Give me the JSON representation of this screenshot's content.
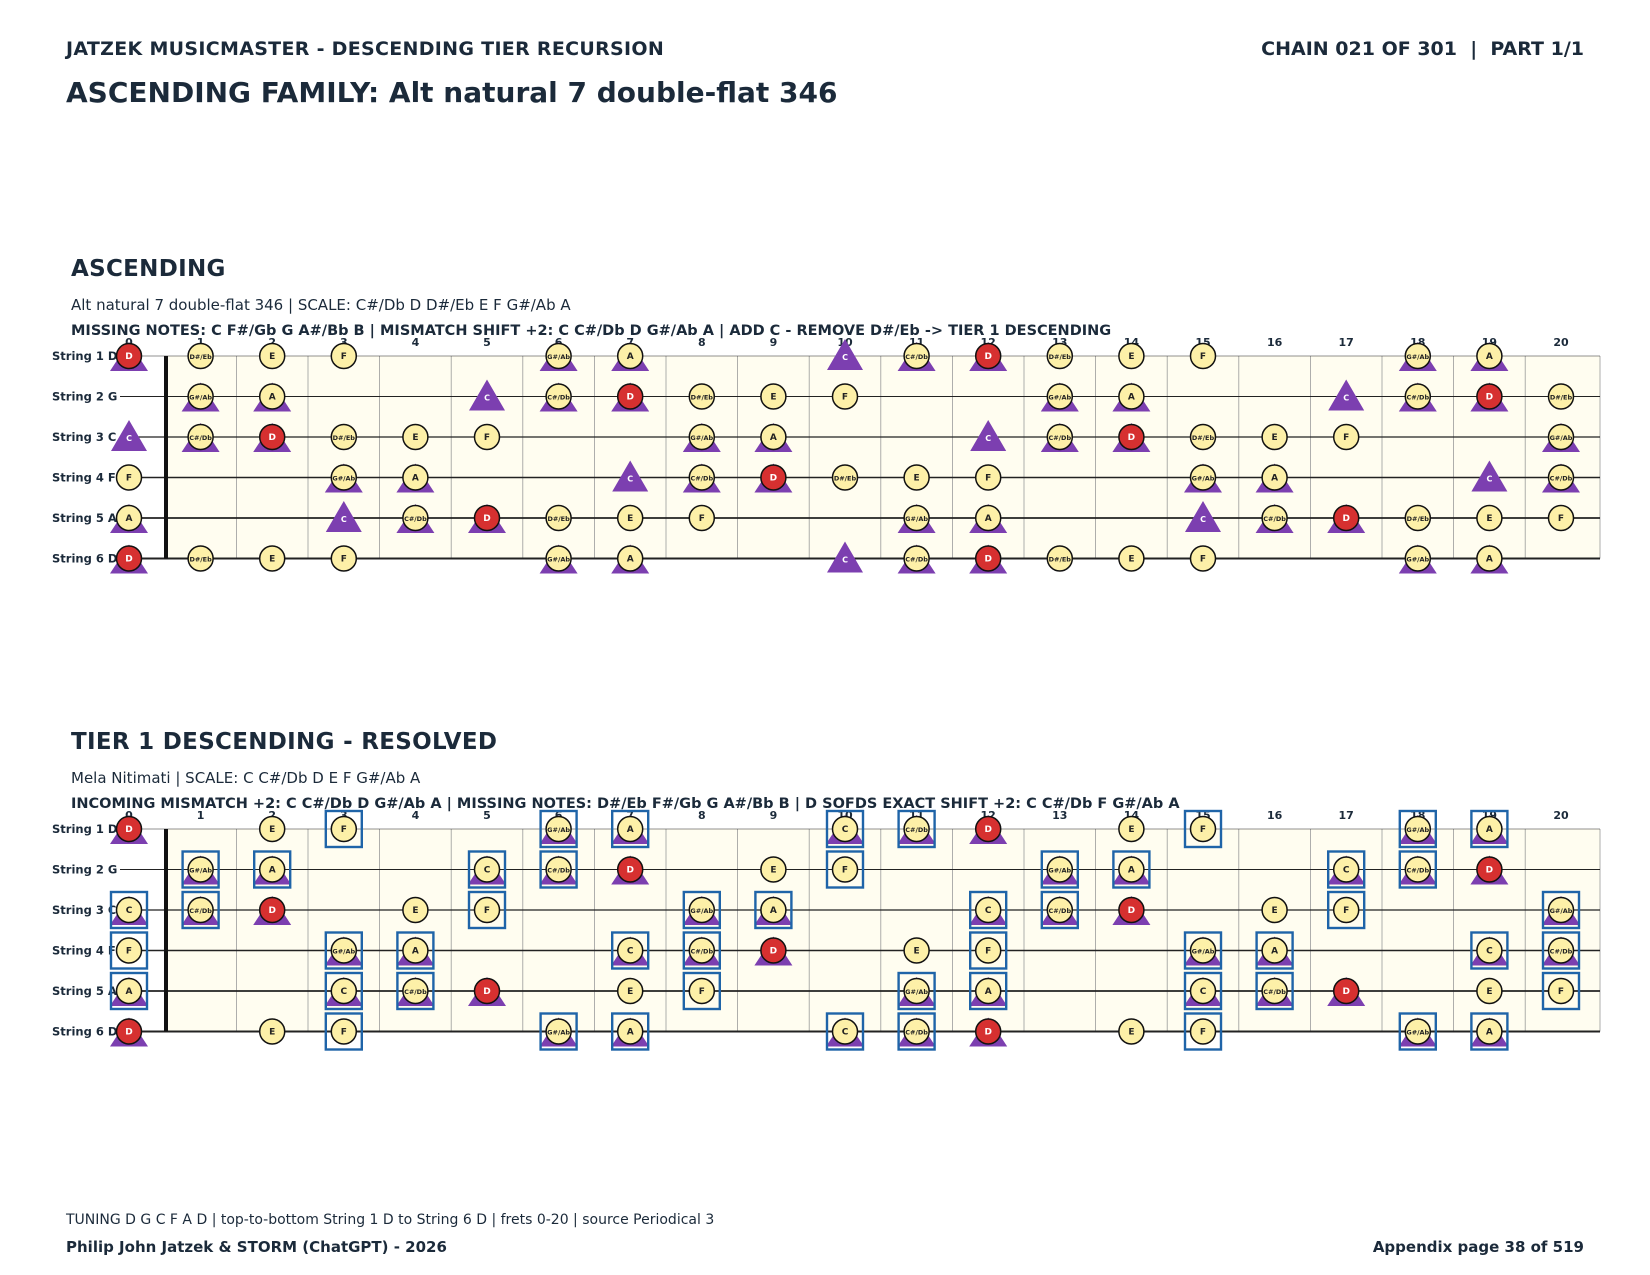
{
  "header": {
    "left": "JATZEK MUSICMASTER - DESCENDING TIER RECURSION",
    "right": "CHAIN 021 OF 301  |  PART 1/1",
    "title": "ASCENDING FAMILY: Alt natural 7 double-flat 346"
  },
  "fretboard": {
    "strings": [
      "String 1 D",
      "String 2 G",
      "String 3 C",
      "String 4 F",
      "String 5 A",
      "String 6 D"
    ],
    "open_notes": [
      "D",
      "G",
      "C",
      "F",
      "A",
      "D"
    ],
    "fret_numbers": [
      "0",
      "1",
      "2",
      "3",
      "4",
      "5",
      "6",
      "7",
      "8",
      "9",
      "10",
      "11",
      "12",
      "13",
      "14",
      "15",
      "16",
      "17",
      "18",
      "19",
      "20"
    ],
    "chromatic": [
      "C",
      "C#/Db",
      "D",
      "D#/Eb",
      "E",
      "F",
      "F#/Gb",
      "G",
      "G#/Ab",
      "A",
      "A#/Bb",
      "B"
    ],
    "colors": {
      "bg": "#fffdf0",
      "note": "#fdf0a8",
      "root": "#d63030",
      "triangle": "#7c3fb0",
      "box": "#1f64a8"
    }
  },
  "sections": [
    {
      "title": "ASCENDING",
      "subtitle": "Alt natural 7 double-flat 346  |  SCALE: C#/Db D D#/Eb E F G#/Ab A",
      "detail": "MISSING NOTES: C F#/Gb G A#/Bb B  |  MISMATCH SHIFT +2: C C#/Db D G#/Ab A  |  ADD C - REMOVE D#/Eb -> TIER 1 DESCENDING",
      "scale_notes": [
        "C#/Db",
        "D",
        "D#/Eb",
        "E",
        "F",
        "G#/Ab",
        "A"
      ],
      "triangle_notes": [
        "C",
        "C#/Db",
        "D",
        "G#/Ab",
        "A"
      ],
      "big_triangle_notes": [
        "C"
      ],
      "boxed_notes": [],
      "root": "D"
    },
    {
      "title": "TIER 1 DESCENDING - RESOLVED",
      "subtitle": "Mela Nitimati  |  SCALE: C C#/Db D E F G#/Ab A",
      "detail": "INCOMING MISMATCH +2: C C#/Db D G#/Ab A  |  MISSING NOTES: D#/Eb F#/Gb G A#/Bb B  |  D SOFDS EXACT SHIFT +2: C C#/Db F G#/Ab A",
      "scale_notes": [
        "C",
        "C#/Db",
        "D",
        "E",
        "F",
        "G#/Ab",
        "A"
      ],
      "triangle_notes": [
        "C",
        "C#/Db",
        "D",
        "G#/Ab",
        "A"
      ],
      "big_triangle_notes": [],
      "boxed_notes": [
        "C",
        "C#/Db",
        "F",
        "G#/Ab",
        "A"
      ],
      "root": "D"
    }
  ],
  "footer": {
    "tuning": "TUNING D G C F A D | top-to-bottom String 1 D to String 6 D | frets 0-20 | source Periodical 3",
    "authors": "Philip John Jatzek & STORM (ChatGPT) - 2026",
    "page": "Appendix page 38 of 519"
  }
}
